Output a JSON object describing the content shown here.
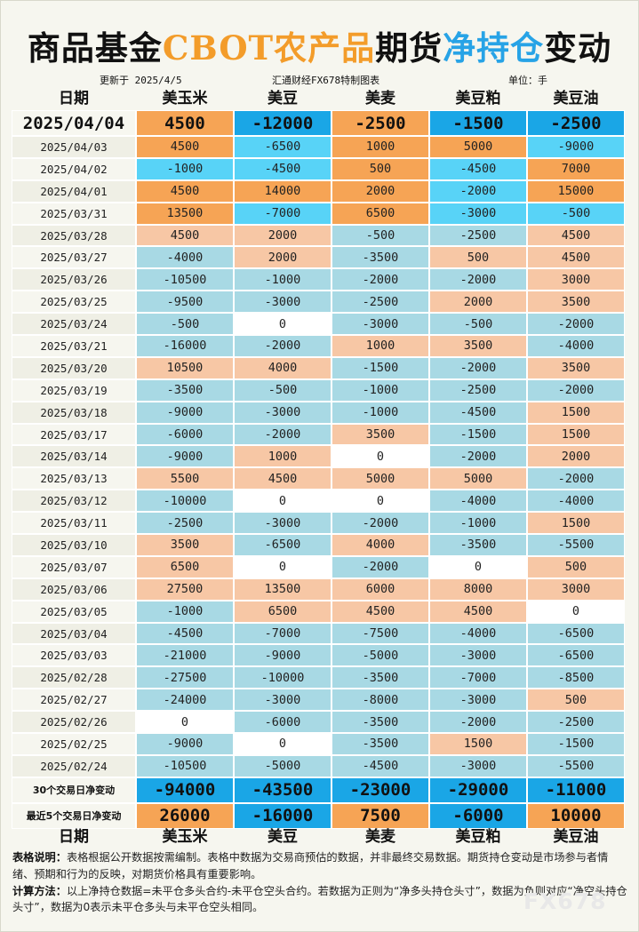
{
  "title": {
    "part1": "商品基金",
    "part2": "CBOT农产品",
    "part3": "期货",
    "part4": "净持仓",
    "part5": "变动"
  },
  "meta": {
    "updated": "更新于 2025/4/5",
    "source": "汇通财经FX678特制图表",
    "unit": "单位：手"
  },
  "columns": [
    "日期",
    "美玉米",
    "美豆",
    "美麦",
    "美豆粕",
    "美豆油"
  ],
  "colors": {
    "orange": "#f6a455",
    "cyan": "#58d3f7",
    "blue": "#1aa6e6",
    "peach": "#f7c7a5",
    "lightblue": "#a8d9e4",
    "white": "#ffffff"
  },
  "latest": {
    "date": "2025/04/04",
    "values": [
      "4500",
      "-12000",
      "-2500",
      "-1500",
      "-2500"
    ],
    "tones": [
      "orange",
      "blue",
      "orange",
      "blue",
      "blue"
    ]
  },
  "rows": [
    {
      "date": "2025/04/03",
      "values": [
        "4500",
        "-6500",
        "1000",
        "5000",
        "-9000"
      ],
      "tones": [
        "orange",
        "cyan",
        "orange",
        "orange",
        "cyan"
      ]
    },
    {
      "date": "2025/04/02",
      "values": [
        "-1000",
        "-4500",
        "500",
        "-4500",
        "7000"
      ],
      "tones": [
        "cyan",
        "cyan",
        "orange",
        "cyan",
        "orange"
      ]
    },
    {
      "date": "2025/04/01",
      "values": [
        "4500",
        "14000",
        "2000",
        "-2000",
        "15000"
      ],
      "tones": [
        "orange",
        "orange",
        "orange",
        "cyan",
        "orange"
      ]
    },
    {
      "date": "2025/03/31",
      "values": [
        "13500",
        "-7000",
        "6500",
        "-3000",
        "-500"
      ],
      "tones": [
        "orange",
        "cyan",
        "orange",
        "cyan",
        "cyan"
      ]
    },
    {
      "date": "2025/03/28",
      "values": [
        "4500",
        "2000",
        "-500",
        "-2500",
        "4500"
      ],
      "tones": [
        "peach",
        "peach",
        "lightblue",
        "lightblue",
        "peach"
      ]
    },
    {
      "date": "2025/03/27",
      "values": [
        "-4000",
        "2000",
        "-3500",
        "500",
        "4500"
      ],
      "tones": [
        "lightblue",
        "peach",
        "lightblue",
        "peach",
        "peach"
      ]
    },
    {
      "date": "2025/03/26",
      "values": [
        "-10500",
        "-1000",
        "-2000",
        "-2000",
        "3000"
      ],
      "tones": [
        "lightblue",
        "lightblue",
        "lightblue",
        "lightblue",
        "peach"
      ]
    },
    {
      "date": "2025/03/25",
      "values": [
        "-9500",
        "-3000",
        "-2500",
        "2000",
        "3500"
      ],
      "tones": [
        "lightblue",
        "lightblue",
        "lightblue",
        "peach",
        "peach"
      ]
    },
    {
      "date": "2025/03/24",
      "values": [
        "-500",
        "0",
        "-3000",
        "-500",
        "-2000"
      ],
      "tones": [
        "lightblue",
        "white",
        "lightblue",
        "lightblue",
        "lightblue"
      ]
    },
    {
      "date": "2025/03/21",
      "values": [
        "-16000",
        "-2000",
        "1000",
        "3500",
        "-4000"
      ],
      "tones": [
        "lightblue",
        "lightblue",
        "peach",
        "peach",
        "lightblue"
      ]
    },
    {
      "date": "2025/03/20",
      "values": [
        "10500",
        "4000",
        "-1500",
        "-2000",
        "3500"
      ],
      "tones": [
        "peach",
        "peach",
        "lightblue",
        "lightblue",
        "peach"
      ]
    },
    {
      "date": "2025/03/19",
      "values": [
        "-3500",
        "-500",
        "-1000",
        "-2500",
        "-2000"
      ],
      "tones": [
        "lightblue",
        "lightblue",
        "lightblue",
        "lightblue",
        "lightblue"
      ]
    },
    {
      "date": "2025/03/18",
      "values": [
        "-9000",
        "-3000",
        "-1000",
        "-4500",
        "1500"
      ],
      "tones": [
        "lightblue",
        "lightblue",
        "lightblue",
        "lightblue",
        "peach"
      ]
    },
    {
      "date": "2025/03/17",
      "values": [
        "-6000",
        "-2000",
        "3500",
        "-1500",
        "1500"
      ],
      "tones": [
        "lightblue",
        "lightblue",
        "peach",
        "lightblue",
        "peach"
      ]
    },
    {
      "date": "2025/03/14",
      "values": [
        "-9000",
        "1000",
        "0",
        "-2000",
        "2000"
      ],
      "tones": [
        "lightblue",
        "peach",
        "white",
        "lightblue",
        "peach"
      ]
    },
    {
      "date": "2025/03/13",
      "values": [
        "5500",
        "4500",
        "5000",
        "5000",
        "-2000"
      ],
      "tones": [
        "peach",
        "peach",
        "peach",
        "peach",
        "lightblue"
      ]
    },
    {
      "date": "2025/03/12",
      "values": [
        "-10000",
        "0",
        "0",
        "-4000",
        "-4000"
      ],
      "tones": [
        "lightblue",
        "white",
        "white",
        "lightblue",
        "lightblue"
      ]
    },
    {
      "date": "2025/03/11",
      "values": [
        "-2500",
        "-3000",
        "-2000",
        "-1000",
        "1500"
      ],
      "tones": [
        "lightblue",
        "lightblue",
        "lightblue",
        "lightblue",
        "peach"
      ]
    },
    {
      "date": "2025/03/10",
      "values": [
        "3500",
        "-6500",
        "4000",
        "-3500",
        "-5500"
      ],
      "tones": [
        "peach",
        "lightblue",
        "peach",
        "lightblue",
        "lightblue"
      ]
    },
    {
      "date": "2025/03/07",
      "values": [
        "6500",
        "0",
        "-2000",
        "0",
        "500"
      ],
      "tones": [
        "peach",
        "white",
        "lightblue",
        "white",
        "peach"
      ]
    },
    {
      "date": "2025/03/06",
      "values": [
        "27500",
        "13500",
        "6000",
        "8000",
        "3000"
      ],
      "tones": [
        "peach",
        "peach",
        "peach",
        "peach",
        "peach"
      ]
    },
    {
      "date": "2025/03/05",
      "values": [
        "-1000",
        "6500",
        "4500",
        "4500",
        "0"
      ],
      "tones": [
        "lightblue",
        "peach",
        "peach",
        "peach",
        "white"
      ]
    },
    {
      "date": "2025/03/04",
      "values": [
        "-4500",
        "-7000",
        "-7500",
        "-4000",
        "-6500"
      ],
      "tones": [
        "lightblue",
        "lightblue",
        "lightblue",
        "lightblue",
        "lightblue"
      ]
    },
    {
      "date": "2025/03/03",
      "values": [
        "-21000",
        "-9000",
        "-5000",
        "-3000",
        "-6500"
      ],
      "tones": [
        "lightblue",
        "lightblue",
        "lightblue",
        "lightblue",
        "lightblue"
      ]
    },
    {
      "date": "2025/02/28",
      "values": [
        "-27500",
        "-10000",
        "-3500",
        "-7000",
        "-8500"
      ],
      "tones": [
        "lightblue",
        "lightblue",
        "lightblue",
        "lightblue",
        "lightblue"
      ]
    },
    {
      "date": "2025/02/27",
      "values": [
        "-24000",
        "-3000",
        "-8000",
        "-3000",
        "500"
      ],
      "tones": [
        "lightblue",
        "lightblue",
        "lightblue",
        "lightblue",
        "peach"
      ]
    },
    {
      "date": "2025/02/26",
      "values": [
        "0",
        "-6000",
        "-3500",
        "-2000",
        "-2500"
      ],
      "tones": [
        "white",
        "lightblue",
        "lightblue",
        "lightblue",
        "lightblue"
      ]
    },
    {
      "date": "2025/02/25",
      "values": [
        "-9000",
        "0",
        "-3500",
        "1500",
        "-1500"
      ],
      "tones": [
        "lightblue",
        "white",
        "lightblue",
        "peach",
        "lightblue"
      ]
    },
    {
      "date": "2025/02/24",
      "values": [
        "-10500",
        "-5000",
        "-4500",
        "-3000",
        "-5500"
      ],
      "tones": [
        "lightblue",
        "lightblue",
        "lightblue",
        "lightblue",
        "lightblue"
      ]
    }
  ],
  "summary": [
    {
      "label": "30个交易日净变动",
      "values": [
        "-94000",
        "-43500",
        "-23000",
        "-29000",
        "-11000"
      ],
      "tones": [
        "blue",
        "blue",
        "blue",
        "blue",
        "blue"
      ]
    },
    {
      "label": "最近5个交易日净变动",
      "values": [
        "26000",
        "-16000",
        "7500",
        "-6000",
        "10000"
      ],
      "tones": [
        "orange",
        "blue",
        "orange",
        "blue",
        "orange"
      ]
    }
  ],
  "notes": {
    "desc_label": "表格说明：",
    "desc_text": "表格根据公开数据按需编制。表格中数据为交易商预估的数据，并非最终交易数据。期货持仓变动是市场参与者情绪、预期和行为的反映，对期货价格具有重要影响。",
    "calc_label": "计算方法：",
    "calc_text": "以上净持仓数据=未平仓多头合约-未平仓空头合约。若数据为正则为“净多头持仓头寸”，数据为负则对应“净空头持仓头寸”，数据为0表示未平仓多头与未平仓空头相同。"
  },
  "watermark": "FX678"
}
